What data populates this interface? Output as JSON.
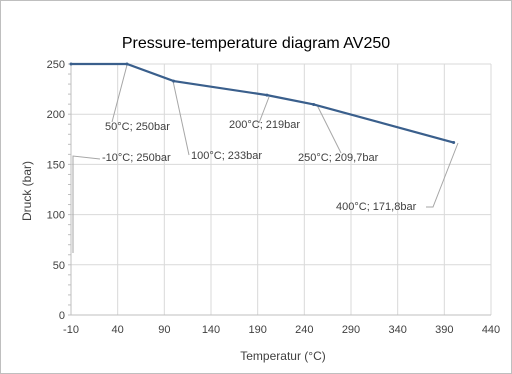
{
  "chart_data": {
    "type": "line",
    "title": "Pressure-temperature diagram AV250",
    "xlabel": "Temperatur (°C)",
    "ylabel": "Druck (bar)",
    "xlim": [
      -10,
      440
    ],
    "ylim": [
      0,
      250
    ],
    "x_ticks": [
      -10,
      40,
      90,
      140,
      190,
      240,
      290,
      340,
      390,
      440
    ],
    "y_ticks": [
      0,
      50,
      100,
      150,
      200,
      250
    ],
    "grid": true,
    "legend": "none",
    "line_color": "#3a5f8c",
    "series": [
      {
        "x": [
          -10,
          50,
          100,
          200,
          250,
          400
        ],
        "y": [
          250,
          250,
          233,
          219,
          209.7,
          171.8
        ]
      }
    ],
    "annotations": [
      {
        "text": "-10°C; 250bar",
        "x": -10,
        "y": 250
      },
      {
        "text": "50°C; 250bar",
        "x": 50,
        "y": 250
      },
      {
        "text": "100°C; 233bar",
        "x": 100,
        "y": 233
      },
      {
        "text": "200°C; 219bar",
        "x": 200,
        "y": 219
      },
      {
        "text": "250°C; 209,7bar",
        "x": 250,
        "y": 209.7
      },
      {
        "text": "400°C; 171,8bar",
        "x": 400,
        "y": 171.8
      }
    ]
  }
}
